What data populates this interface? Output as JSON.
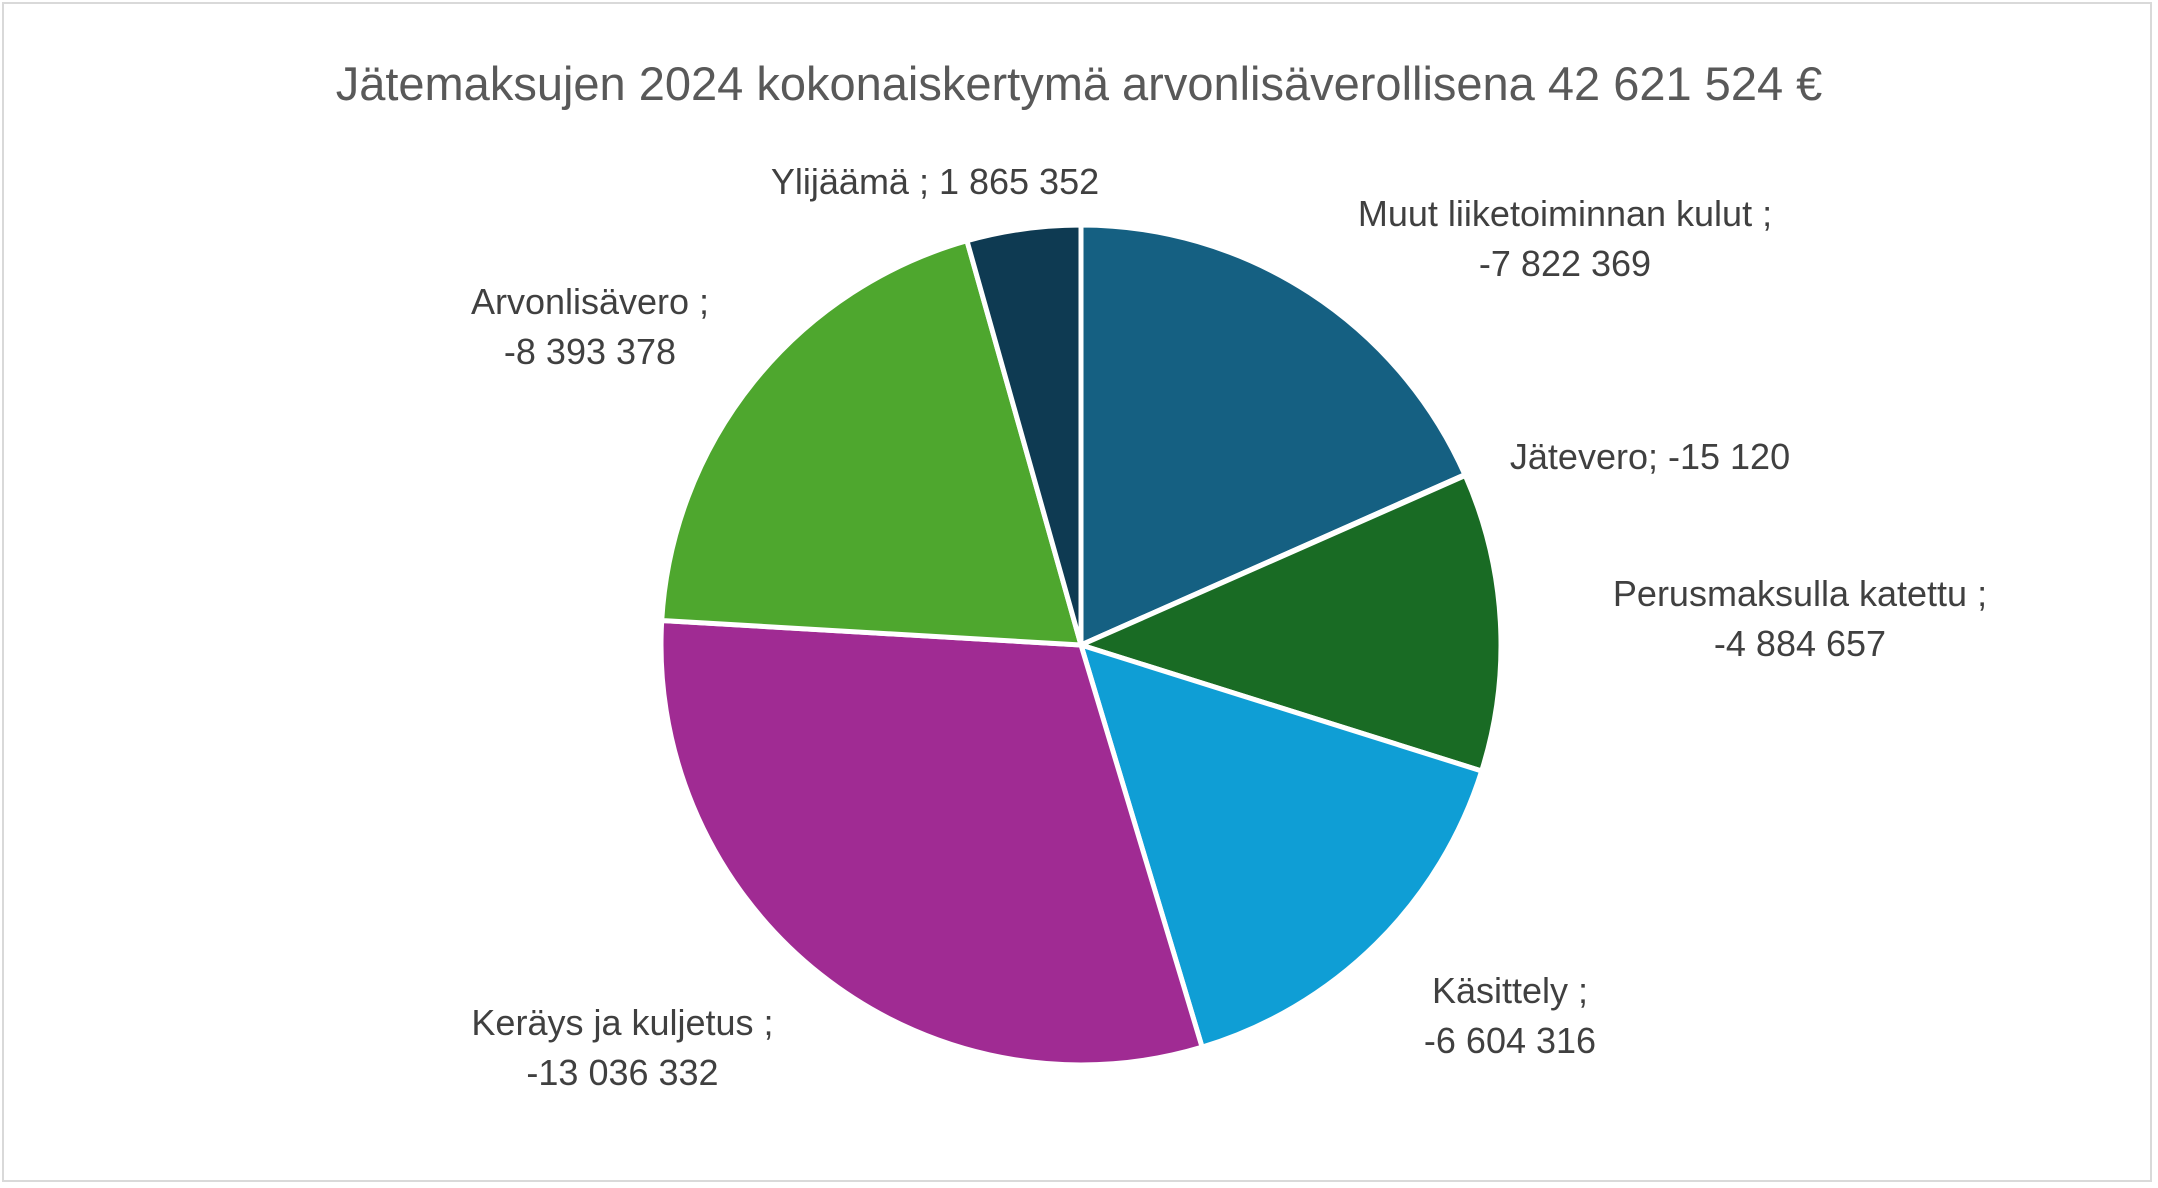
{
  "chart_data": {
    "type": "pie",
    "title": "Jätemaksujen 2024 kokonaiskertymä arvonlisäverollisena 42 621 524 €",
    "slices": [
      {
        "name": "Muut liiketoiminnan kulut",
        "value": -7822369,
        "display_name": "Muut liiketoiminnan kulut ;",
        "display_value": "-7 822 369",
        "color": "#156082"
      },
      {
        "name": "Jätevero",
        "value": -15120,
        "display_name": "Jätevero; -15 120",
        "display_value": "",
        "color": "#156082"
      },
      {
        "name": "Perusmaksulla katettu",
        "value": -4884657,
        "display_name": "Perusmaksulla katettu ;",
        "display_value": "-4 884 657",
        "color": "#196B24"
      },
      {
        "name": "Käsittely",
        "value": -6604316,
        "display_name": "Käsittely ;",
        "display_value": "-6 604 316",
        "color": "#0F9ED5"
      },
      {
        "name": "Keräys ja kuljetus",
        "value": -13036332,
        "display_name": "Keräys ja kuljetus ;",
        "display_value": "-13 036 332",
        "color": "#A02B93"
      },
      {
        "name": "Arvonlisävero",
        "value": -8393378,
        "display_name": "Arvonlisävero ;",
        "display_value": "-8 393 378",
        "color": "#4EA72E"
      },
      {
        "name": "Ylijäämä",
        "value": 1865352,
        "display_name": "Ylijäämä ; 1 865 352",
        "display_value": "",
        "color": "#0E3A52"
      }
    ]
  }
}
